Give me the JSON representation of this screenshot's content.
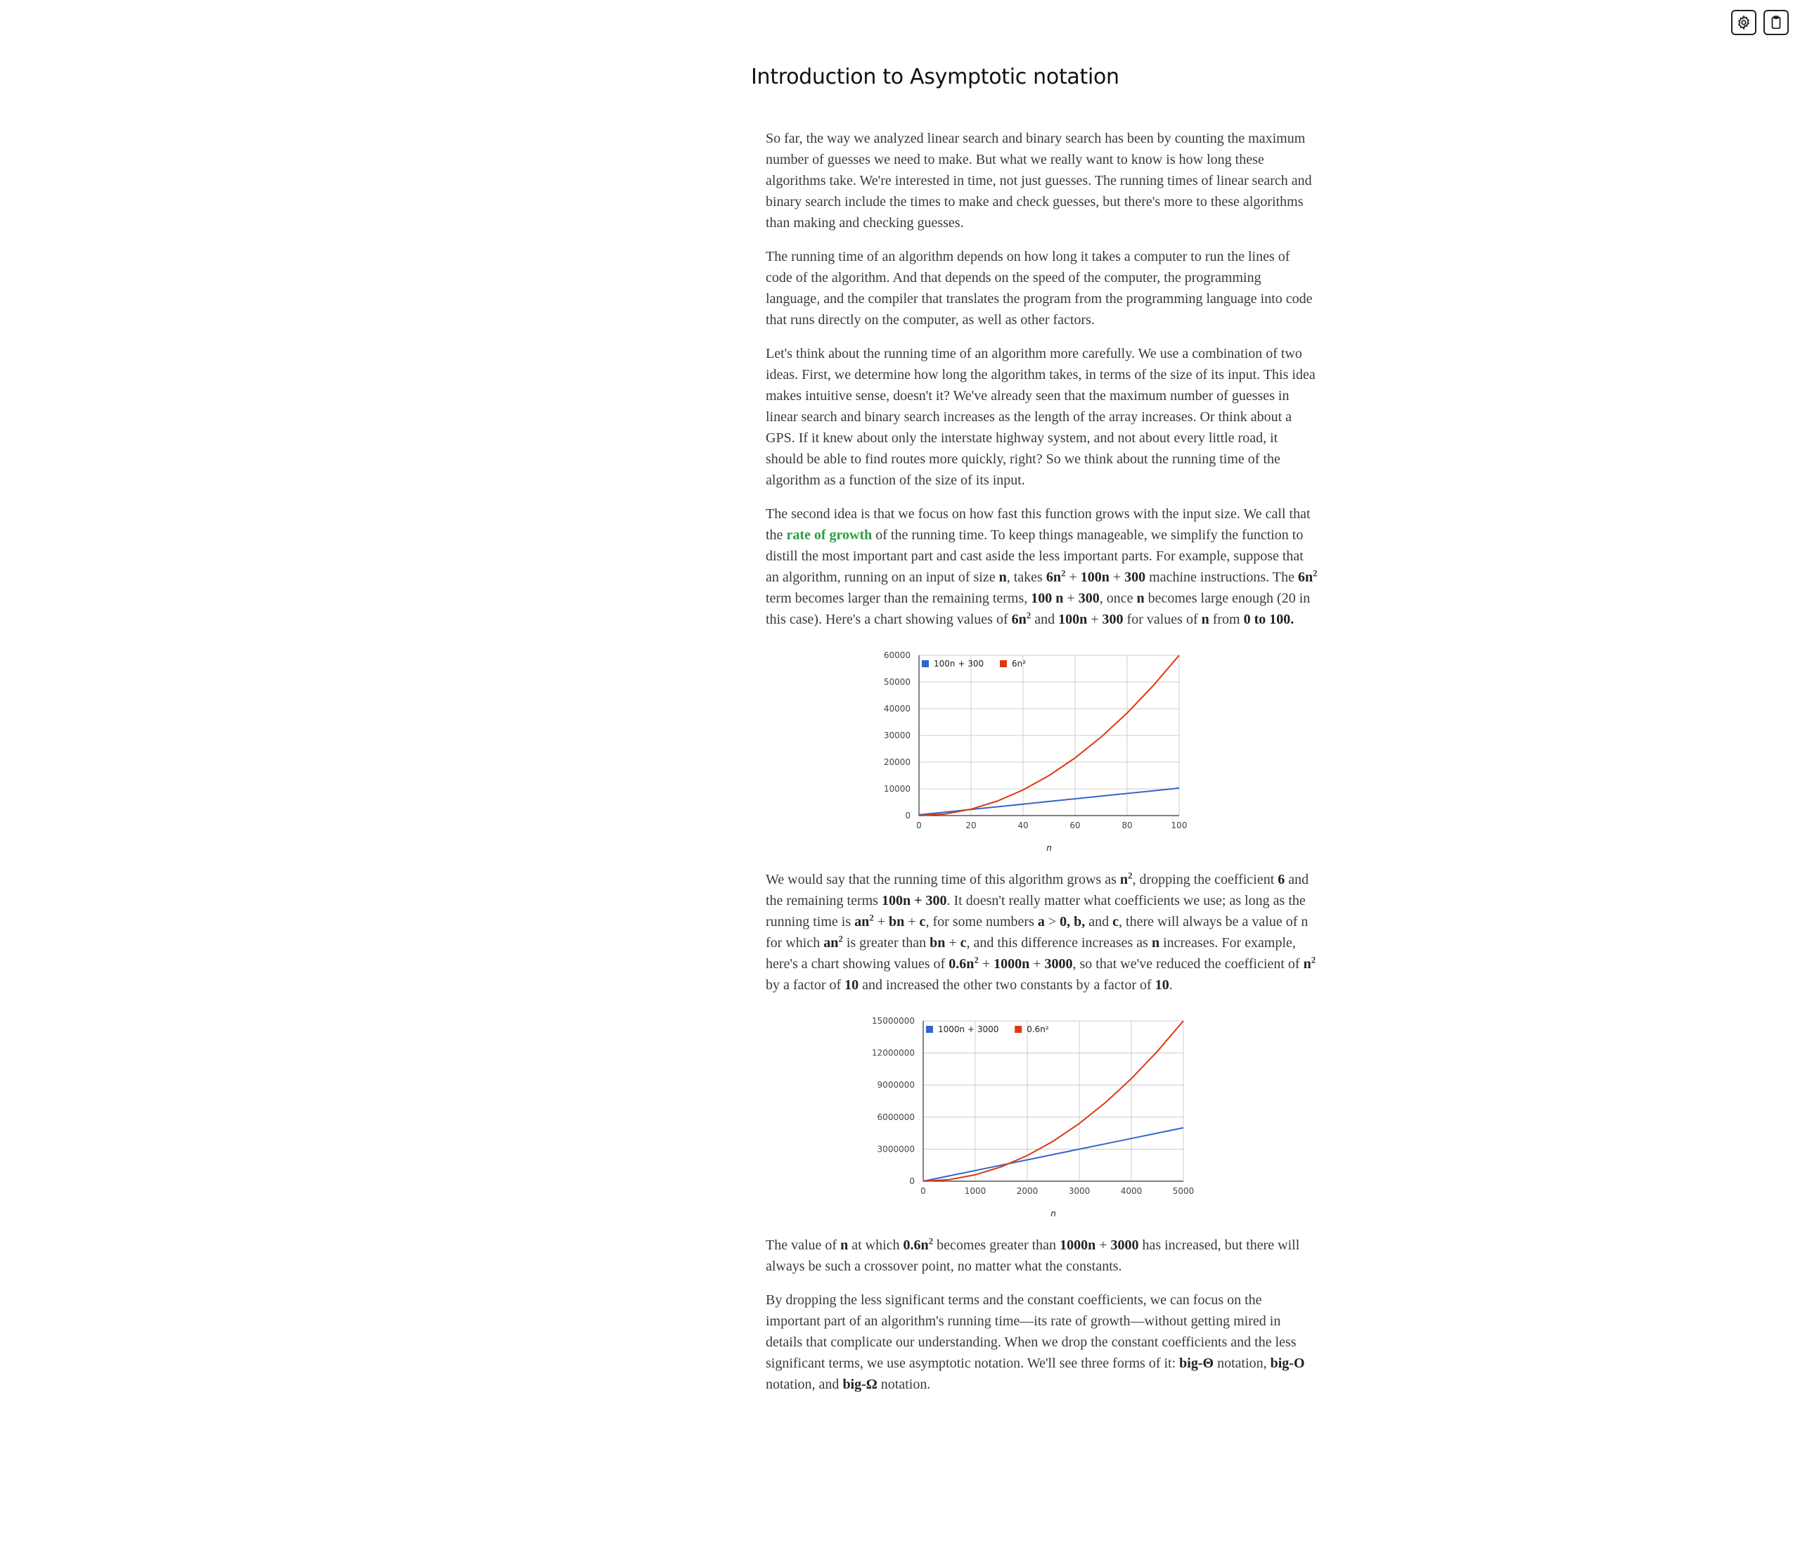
{
  "toolbar": {
    "settings_icon": "gear-icon",
    "clipboard_icon": "clipboard-icon"
  },
  "page": {
    "title": "Introduction to Asymptotic notation"
  },
  "p1": {
    "text": "So far, the way we analyzed linear search and binary search has been by counting the maximum number of guesses we need to make. But what we really want to know is how long these algorithms take. We're interested in time, not just guesses. The running times of linear search and binary search include the times to make and check guesses, but there's more to these algorithms than making and checking guesses."
  },
  "p2": {
    "text": "The running time of an algorithm depends on how long it takes a computer to run the lines of code of the algorithm. And that depends on the speed of the computer, the programming language, and the compiler that translates the program from the programming language into code that runs directly on the computer, as well as other factors."
  },
  "p3": {
    "text": "Let's think about the running time of an algorithm more carefully. We use a combination of two ideas. First, we determine how long the algorithm takes, in terms of the size of its input. This idea makes intuitive sense, doesn't it? We've already seen that the maximum number of guesses in linear search and binary search increases as the length of the array increases. Or think about a GPS. If it knew about only the interstate highway system, and not about every little road, it should be able to find routes more quickly, right? So we think about the running time of the algorithm as a function of the size of its input."
  },
  "p4": {
    "t1": "The second idea is that we focus on how fast this function grows with the input size. We call that the ",
    "link": "rate of growth",
    "t2": " of the running time. To keep things manageable, we simplify the function to distill the most important part and cast aside the less important parts. For example, suppose that an algorithm, running on an input of size ",
    "n": "n",
    "t3": ", takes ",
    "f1a": "6n",
    "sq": "2",
    "f1b": " + ",
    "f1c": "100n",
    "f1d": " + ",
    "f1e": "300",
    "t4": " machine instructions. The ",
    "f2a": "6n",
    "t5": " term becomes larger than the remaining terms, ",
    "f3a": "100 n",
    "f3b": " + ",
    "f3c": "300",
    "t6": ", once ",
    "t7": " becomes large enough (20 in this case). Here's a chart showing values of ",
    "f4a": "6n",
    "t8": " and ",
    "f5a": "100n",
    "f5b": " + ",
    "f5c": "300",
    "t9": " for values of ",
    "t10": " from ",
    "range": "0 to 100."
  },
  "p5": {
    "t1": "We would say that the running time of this algorithm grows as ",
    "n2": "n",
    "t2": ", dropping the coefficient ",
    "six": "6",
    "t3": " and the remaining terms ",
    "rem": "100n + 300",
    "t4": ". It doesn't really matter what coefficients we use; as long as the running time is ",
    "an": "an",
    "plus": " + ",
    "bn": "bn",
    "c": "c",
    "t5": ", for some numbers ",
    "a": "a",
    "gt": " > ",
    "zero": "0, b,",
    "and": " and ",
    "t6": ", there will always be a value of n for which ",
    "t7": " is greater than ",
    "t8": ", and this difference increases as ",
    "n": "n",
    "t9": " increases. For example, here's a chart showing values of ",
    "f1": "0.6n",
    "f2": "1000n",
    "f3": "3000",
    "t10": ", so that we've reduced the coefficient of ",
    "t11": " by a factor of ",
    "ten": "10",
    "t12": " and increased the other two constants by a factor of ",
    "end": "."
  },
  "p6": {
    "t1": "The value of ",
    "n": "n",
    "t2": " at which ",
    "f1": "0.6n",
    "t3": " becomes greater than ",
    "f2": "1000n",
    "plus": " + ",
    "f3": "3000",
    "t4": " has increased, but there will always be such a crossover point, no matter what the constants."
  },
  "p7": {
    "t1": "By dropping the less significant terms and the constant coefficients, we can focus on the important part of an algorithm's running time—its rate of growth—without getting mired in details that complicate our understanding. When we drop the constant coefficients and the less significant terms, we use asymptotic notation. We'll see three forms of it: ",
    "theta": "big-Θ",
    "t2": " notation, ",
    "bigo": "big-O",
    "t3": " notation, and ",
    "omega": "big-Ω",
    "t4": " notation."
  },
  "colors": {
    "link_green": "#2ca043",
    "series_blue": "#3366cc",
    "series_red": "#dc3912"
  },
  "chart_data": [
    {
      "type": "line",
      "title": "",
      "xlabel": "n",
      "ylabel": "",
      "xlim": [
        0,
        100
      ],
      "ylim": [
        0,
        60000
      ],
      "x_ticks": [
        "0",
        "20",
        "40",
        "60",
        "80",
        "100"
      ],
      "y_ticks": [
        "0",
        "10000",
        "20000",
        "30000",
        "40000",
        "50000",
        "60000"
      ],
      "grid": true,
      "legend_position": "top-left",
      "x": [
        0,
        10,
        20,
        30,
        40,
        50,
        60,
        70,
        80,
        90,
        100
      ],
      "series": [
        {
          "name": "100n + 300",
          "color": "#3366cc",
          "values": [
            300,
            1300,
            2300,
            3300,
            4300,
            5300,
            6300,
            7300,
            8300,
            9300,
            10300
          ]
        },
        {
          "name": "6n²",
          "color": "#dc3912",
          "values": [
            0,
            600,
            2400,
            5400,
            9600,
            15000,
            21600,
            29400,
            38400,
            48600,
            60000
          ]
        }
      ]
    },
    {
      "type": "line",
      "title": "",
      "xlabel": "n",
      "ylabel": "",
      "xlim": [
        0,
        5000
      ],
      "ylim": [
        0,
        15000000
      ],
      "x_ticks": [
        "0",
        "1000",
        "2000",
        "3000",
        "4000",
        "5000"
      ],
      "y_ticks": [
        "0",
        "3000000",
        "6000000",
        "9000000",
        "12000000",
        "15000000"
      ],
      "grid": true,
      "legend_position": "top-left",
      "x": [
        0,
        500,
        1000,
        1500,
        2000,
        2500,
        3000,
        3500,
        4000,
        4500,
        5000
      ],
      "series": [
        {
          "name": "1000n + 3000",
          "color": "#3366cc",
          "values": [
            3000,
            503000,
            1003000,
            1503000,
            2003000,
            2503000,
            3003000,
            3503000,
            4003000,
            4503000,
            5003000
          ]
        },
        {
          "name": "0.6n²",
          "color": "#dc3912",
          "values": [
            0,
            150000,
            600000,
            1350000,
            2400000,
            3750000,
            5400000,
            7350000,
            9600000,
            12150000,
            15000000
          ]
        }
      ]
    }
  ]
}
